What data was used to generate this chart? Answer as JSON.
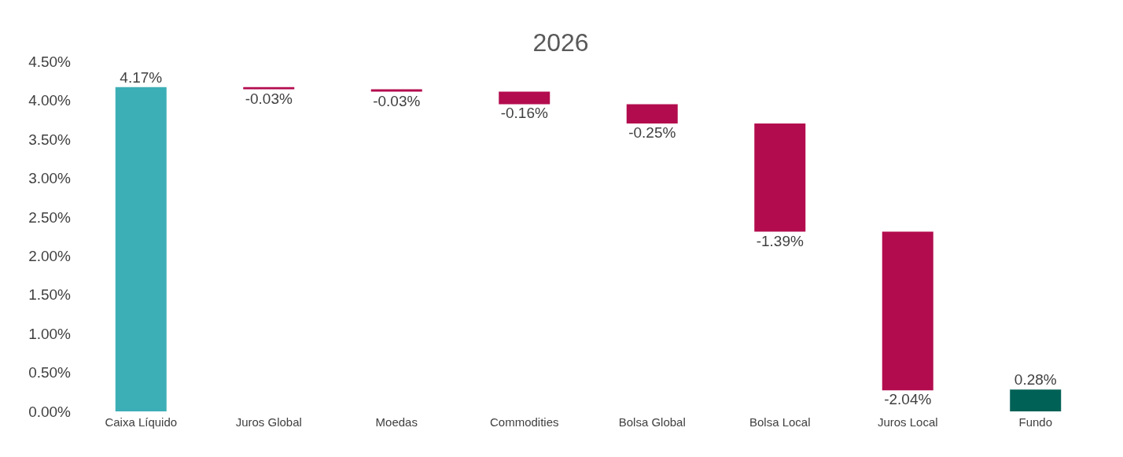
{
  "chart_data": {
    "type": "bar",
    "title": "2026",
    "categories": [
      "Caixa Líquido",
      "Juros Global",
      "Moedas",
      "Commodities",
      "Bolsa Global",
      "Bolsa Local",
      "Juros Local",
      "Fundo"
    ],
    "values": [
      4.17,
      -0.03,
      -0.03,
      -0.16,
      -0.25,
      -1.39,
      -2.04,
      0.28
    ],
    "base": [
      0,
      4.17,
      4.14,
      4.11,
      3.95,
      3.7,
      2.31,
      0
    ],
    "colors": [
      "#3caeb6",
      "#b30c4e",
      "#b30c4e",
      "#b30c4e",
      "#b30c4e",
      "#b30c4e",
      "#b30c4e",
      "#006156"
    ],
    "value_labels": [
      "4.17%",
      "-0.03%",
      "-0.03%",
      "-0.16%",
      "-0.25%",
      "-1.39%",
      "-2.04%",
      "0.28%"
    ],
    "ylim": [
      0,
      4.5
    ],
    "yticks": [
      {
        "value": 0,
        "label": "0.00%"
      },
      {
        "value": 0.5,
        "label": "0.50%"
      },
      {
        "value": 1,
        "label": "1.00%"
      },
      {
        "value": 1.5,
        "label": "1.50%"
      },
      {
        "value": 2,
        "label": "2.00%"
      },
      {
        "value": 2.5,
        "label": "2.50%"
      },
      {
        "value": 3,
        "label": "3.00%"
      },
      {
        "value": 3.5,
        "label": "3.50%"
      },
      {
        "value": 4,
        "label": "4.00%"
      },
      {
        "value": 4.5,
        "label": "4.50%"
      }
    ],
    "grid": false,
    "legend": false
  }
}
